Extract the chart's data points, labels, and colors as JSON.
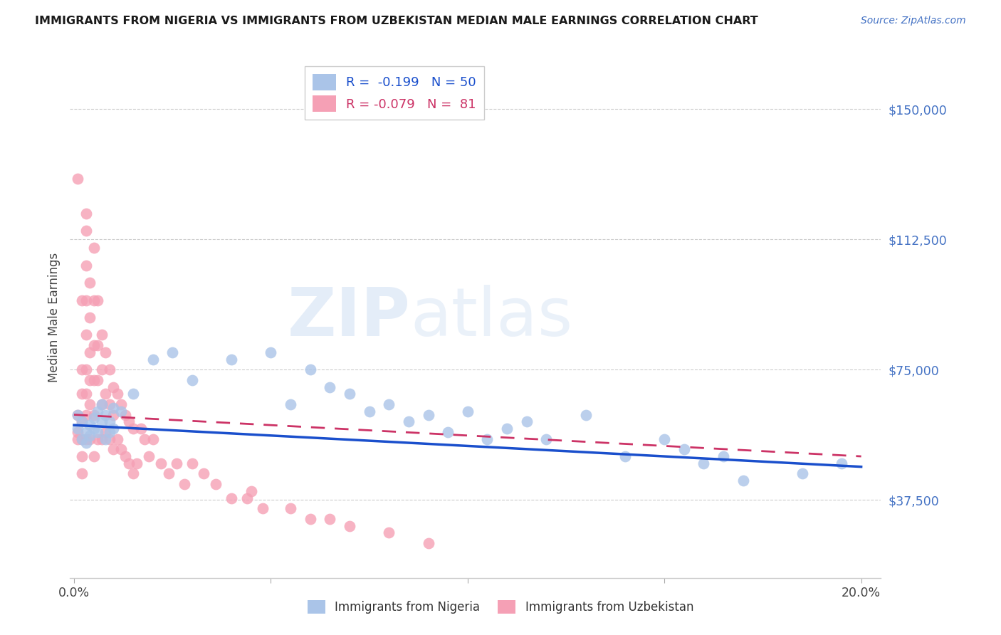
{
  "title": "IMMIGRANTS FROM NIGERIA VS IMMIGRANTS FROM UZBEKISTAN MEDIAN MALE EARNINGS CORRELATION CHART",
  "source": "Source: ZipAtlas.com",
  "ylabel": "Median Male Earnings",
  "xlim": [
    -0.001,
    0.205
  ],
  "ylim": [
    15000,
    165000
  ],
  "yticks": [
    37500,
    75000,
    112500,
    150000
  ],
  "ytick_labels": [
    "$37,500",
    "$75,000",
    "$112,500",
    "$150,000"
  ],
  "xticks": [
    0.0,
    0.05,
    0.1,
    0.15,
    0.2
  ],
  "xtick_labels": [
    "0.0%",
    "",
    "",
    "",
    "20.0%"
  ],
  "nigeria_color": "#aac4e8",
  "uzbekistan_color": "#f5a0b5",
  "nigeria_line_color": "#1a4fcc",
  "uzbekistan_line_color": "#cc3366",
  "nigeria_R": -0.199,
  "nigeria_N": 50,
  "uzbekistan_R": -0.079,
  "uzbekistan_N": 81,
  "legend_label_nigeria": "Immigrants from Nigeria",
  "legend_label_uzbekistan": "Immigrants from Uzbekistan",
  "nigeria_x": [
    0.001,
    0.001,
    0.002,
    0.002,
    0.003,
    0.003,
    0.004,
    0.004,
    0.005,
    0.005,
    0.006,
    0.006,
    0.007,
    0.007,
    0.008,
    0.008,
    0.009,
    0.009,
    0.01,
    0.01,
    0.012,
    0.015,
    0.02,
    0.025,
    0.03,
    0.04,
    0.05,
    0.055,
    0.06,
    0.065,
    0.07,
    0.075,
    0.08,
    0.085,
    0.09,
    0.095,
    0.1,
    0.105,
    0.11,
    0.115,
    0.12,
    0.13,
    0.14,
    0.15,
    0.155,
    0.16,
    0.165,
    0.17,
    0.185,
    0.195
  ],
  "nigeria_y": [
    62000,
    58000,
    60000,
    55000,
    57000,
    54000,
    56000,
    59000,
    61000,
    58000,
    63000,
    57000,
    65000,
    60000,
    62000,
    55000,
    60000,
    57000,
    64000,
    58000,
    63000,
    68000,
    78000,
    80000,
    72000,
    78000,
    80000,
    65000,
    75000,
    70000,
    68000,
    63000,
    65000,
    60000,
    62000,
    57000,
    63000,
    55000,
    58000,
    60000,
    55000,
    62000,
    50000,
    55000,
    52000,
    48000,
    50000,
    43000,
    45000,
    48000
  ],
  "uzbekistan_x": [
    0.001,
    0.001,
    0.001,
    0.001,
    0.002,
    0.002,
    0.002,
    0.002,
    0.002,
    0.002,
    0.002,
    0.003,
    0.003,
    0.003,
    0.003,
    0.003,
    0.003,
    0.003,
    0.003,
    0.003,
    0.004,
    0.004,
    0.004,
    0.004,
    0.004,
    0.004,
    0.005,
    0.005,
    0.005,
    0.005,
    0.005,
    0.005,
    0.006,
    0.006,
    0.006,
    0.006,
    0.007,
    0.007,
    0.007,
    0.007,
    0.008,
    0.008,
    0.008,
    0.009,
    0.009,
    0.009,
    0.01,
    0.01,
    0.01,
    0.011,
    0.011,
    0.012,
    0.012,
    0.013,
    0.013,
    0.014,
    0.014,
    0.015,
    0.015,
    0.016,
    0.017,
    0.018,
    0.019,
    0.02,
    0.022,
    0.024,
    0.026,
    0.028,
    0.03,
    0.033,
    0.036,
    0.04,
    0.044,
    0.048,
    0.055,
    0.06,
    0.065,
    0.07,
    0.08,
    0.09,
    0.045
  ],
  "uzbekistan_y": [
    62000,
    57000,
    55000,
    130000,
    95000,
    75000,
    68000,
    60000,
    55000,
    50000,
    45000,
    120000,
    115000,
    105000,
    95000,
    85000,
    75000,
    68000,
    62000,
    55000,
    100000,
    90000,
    80000,
    72000,
    65000,
    55000,
    110000,
    95000,
    82000,
    72000,
    62000,
    50000,
    95000,
    82000,
    72000,
    55000,
    85000,
    75000,
    65000,
    55000,
    80000,
    68000,
    57000,
    75000,
    65000,
    55000,
    70000,
    62000,
    52000,
    68000,
    55000,
    65000,
    52000,
    62000,
    50000,
    60000,
    48000,
    58000,
    45000,
    48000,
    58000,
    55000,
    50000,
    55000,
    48000,
    45000,
    48000,
    42000,
    48000,
    45000,
    42000,
    38000,
    38000,
    35000,
    35000,
    32000,
    32000,
    30000,
    28000,
    25000,
    40000
  ]
}
